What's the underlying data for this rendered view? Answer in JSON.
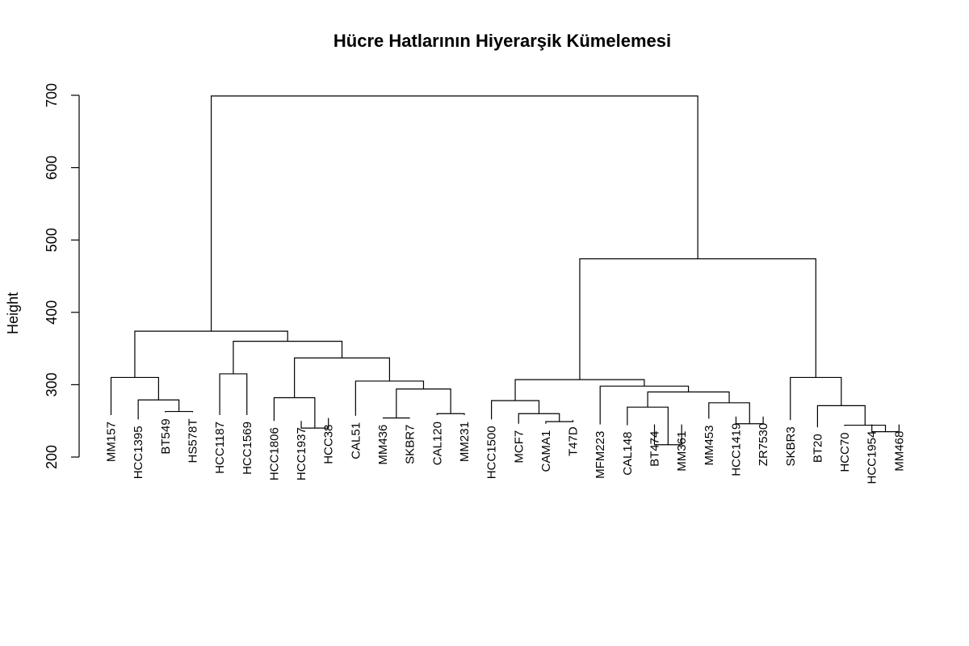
{
  "chart_data": {
    "type": "dendrogram",
    "title": "Hücre Hatlarının Hiyerarşik Kümelemesi",
    "ylabel": "Height",
    "ylim": [
      200,
      700
    ],
    "yticks": [
      200,
      300,
      400,
      500,
      600,
      700
    ],
    "leaves": [
      "MM157",
      "HCC1395",
      "BT549",
      "HS578T",
      "HCC1187",
      "HCC1569",
      "HCC1806",
      "HCC1937",
      "HCC38",
      "CAL51",
      "MM436",
      "SKBR7",
      "CAL120",
      "MM231",
      "HCC1500",
      "MCF7",
      "CAMA1",
      "T47D",
      "MFM223",
      "CAL148",
      "BT474",
      "MM361",
      "MM453",
      "HCC1419",
      "ZR7530",
      "SKBR3",
      "BT20",
      "HCC70",
      "HCC1954",
      "MM468"
    ],
    "leaf_heights": [
      258,
      252,
      262,
      262,
      258,
      258,
      250,
      250,
      254,
      257,
      254,
      254,
      258,
      258,
      252,
      246,
      246,
      251,
      245,
      244,
      245,
      245,
      253,
      256,
      256,
      251,
      241,
      243,
      245,
      245
    ],
    "merges": [
      [
        2,
        3,
        263
      ],
      [
        1,
        -1,
        279
      ],
      [
        0,
        -2,
        310
      ],
      [
        4,
        5,
        315
      ],
      [
        7,
        8,
        240
      ],
      [
        6,
        -5,
        282
      ],
      [
        10,
        11,
        254
      ],
      [
        12,
        13,
        260
      ],
      [
        -7,
        -8,
        294
      ],
      [
        9,
        -9,
        305
      ],
      [
        -6,
        -10,
        337
      ],
      [
        -4,
        -11,
        360
      ],
      [
        -3,
        -12,
        374
      ],
      [
        16,
        17,
        249
      ],
      [
        15,
        -14,
        260
      ],
      [
        14,
        -15,
        278
      ],
      [
        20,
        21,
        217
      ],
      [
        19,
        -17,
        269
      ],
      [
        23,
        24,
        246
      ],
      [
        22,
        -19,
        275
      ],
      [
        -18,
        -20,
        290
      ],
      [
        18,
        -21,
        298
      ],
      [
        -16,
        -22,
        307
      ],
      [
        28,
        29,
        235
      ],
      [
        27,
        -24,
        244
      ],
      [
        26,
        -25,
        271
      ],
      [
        25,
        -26,
        310
      ],
      [
        -23,
        -27,
        474
      ],
      [
        -13,
        -28,
        699
      ]
    ]
  }
}
